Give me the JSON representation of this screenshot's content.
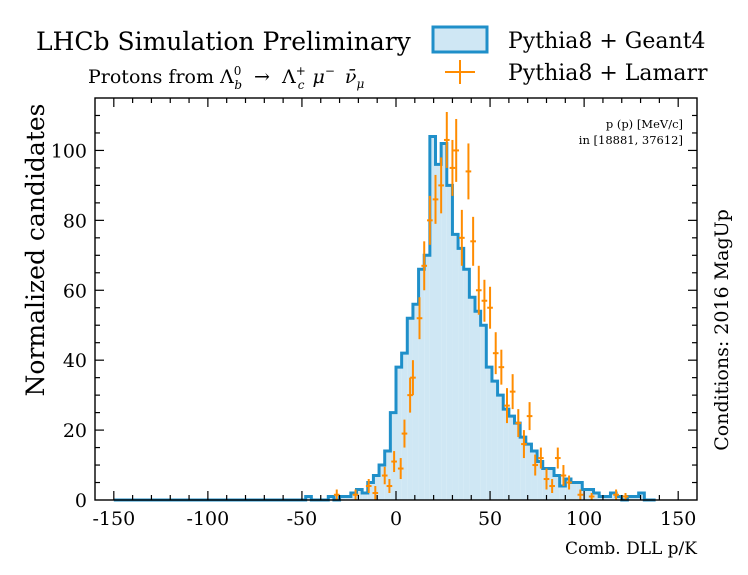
{
  "header": {
    "title": "LHCb Simulation Preliminary",
    "subtitle_prefix": "Protons from",
    "decay_parts": [
      "Λ",
      "0",
      "b",
      "→",
      "Λ",
      "+",
      "c",
      "μ",
      "−",
      "ν̄",
      "μ"
    ]
  },
  "conditions": "Conditions: 2016 MagUp",
  "bin_info": {
    "line1": "p (p) [MeV/c]",
    "line2": "in [18881, 37612]"
  },
  "colors": {
    "geant": "#1f8fc9",
    "geant_fill": "#cfe7f4",
    "lamarr": "#ff8c00"
  },
  "chart_data": {
    "type": "histogram",
    "xlabel": "Comb. DLL p/K",
    "ylabel": "Normalized candidates",
    "xlim": [
      -160,
      160
    ],
    "ylim": [
      0,
      115
    ],
    "xticks": [
      -150,
      -100,
      -50,
      0,
      50,
      100,
      150
    ],
    "yticks": [
      0,
      20,
      40,
      60,
      80,
      100
    ],
    "legend_position": "top-right",
    "bin_width": 3,
    "series": [
      {
        "name": "Pythia8 + Geant4",
        "style": "step-filled",
        "x": [
          -150,
          -147,
          -144,
          -141,
          -138,
          -135,
          -132,
          -129,
          -126,
          -123,
          -120,
          -117,
          -114,
          -111,
          -108,
          -105,
          -102,
          -99,
          -96,
          -93,
          -90,
          -87,
          -84,
          -81,
          -78,
          -75,
          -72,
          -69,
          -66,
          -63,
          -60,
          -57,
          -54,
          -51,
          -48,
          -45,
          -42,
          -39,
          -36,
          -33,
          -30,
          -27,
          -24,
          -21,
          -18,
          -15,
          -12,
          -9,
          -6,
          -3,
          0,
          3,
          6,
          9,
          12,
          15,
          18,
          21,
          24,
          27,
          30,
          33,
          36,
          39,
          42,
          45,
          48,
          51,
          54,
          57,
          60,
          63,
          66,
          69,
          72,
          75,
          78,
          81,
          84,
          87,
          90,
          93,
          96,
          99,
          102,
          105,
          108,
          111,
          114,
          117,
          120,
          123,
          126,
          129,
          132,
          135
        ],
        "y": [
          0,
          0,
          0,
          0,
          0,
          0,
          0,
          0,
          0,
          0,
          0,
          0,
          0,
          0,
          0,
          0,
          0,
          0,
          0,
          0,
          0,
          0,
          0,
          0,
          0,
          0,
          0,
          0,
          0,
          0,
          0,
          0,
          0,
          0,
          1,
          0,
          0,
          0,
          1,
          0,
          1,
          1,
          2,
          3,
          2,
          5,
          7,
          10,
          14,
          25,
          38,
          42,
          52,
          56,
          66,
          70,
          104,
          96,
          102,
          90,
          76,
          72,
          66,
          58,
          54,
          50,
          38,
          34,
          30,
          26,
          24,
          22,
          18,
          16,
          14,
          11,
          9,
          9,
          7,
          4,
          6,
          5,
          5,
          3,
          3,
          2,
          1,
          1,
          2,
          1,
          0,
          1,
          1,
          2,
          0,
          0
        ]
      },
      {
        "name": "Pythia8 + Lamarr",
        "style": "errorbar",
        "points": [
          {
            "x": -31.5,
            "y": 1.5,
            "err": 1.5
          },
          {
            "x": -21.5,
            "y": 1.5,
            "err": 1.5
          },
          {
            "x": -14.5,
            "y": 4,
            "err": 2
          },
          {
            "x": -11,
            "y": 2,
            "err": 2
          },
          {
            "x": -6,
            "y": 7,
            "err": 2.5
          },
          {
            "x": -3.5,
            "y": 4,
            "err": 2
          },
          {
            "x": -1,
            "y": 11,
            "err": 3
          },
          {
            "x": 2.5,
            "y": 9,
            "err": 3
          },
          {
            "x": 4.5,
            "y": 19,
            "err": 4
          },
          {
            "x": 7.5,
            "y": 30,
            "err": 5
          },
          {
            "x": 9,
            "y": 35,
            "err": 5
          },
          {
            "x": 12.5,
            "y": 52,
            "err": 6
          },
          {
            "x": 15,
            "y": 67,
            "err": 7
          },
          {
            "x": 18,
            "y": 80,
            "err": 7
          },
          {
            "x": 21,
            "y": 86,
            "err": 7
          },
          {
            "x": 24,
            "y": 90,
            "err": 8
          },
          {
            "x": 27,
            "y": 103,
            "err": 8
          },
          {
            "x": 30,
            "y": 95,
            "err": 8
          },
          {
            "x": 32,
            "y": 100,
            "err": 9
          },
          {
            "x": 35,
            "y": 75,
            "err": 8
          },
          {
            "x": 38.5,
            "y": 94,
            "err": 8
          },
          {
            "x": 41,
            "y": 74,
            "err": 7
          },
          {
            "x": 44,
            "y": 60,
            "err": 7
          },
          {
            "x": 47,
            "y": 57,
            "err": 6
          },
          {
            "x": 50,
            "y": 55,
            "err": 6
          },
          {
            "x": 53,
            "y": 42,
            "err": 6
          },
          {
            "x": 56,
            "y": 38,
            "err": 5
          },
          {
            "x": 59,
            "y": 27,
            "err": 5
          },
          {
            "x": 62,
            "y": 31,
            "err": 5
          },
          {
            "x": 65,
            "y": 22,
            "err": 4
          },
          {
            "x": 68,
            "y": 16,
            "err": 4
          },
          {
            "x": 71,
            "y": 24,
            "err": 4
          },
          {
            "x": 74,
            "y": 10,
            "err": 3
          },
          {
            "x": 77,
            "y": 12,
            "err": 3
          },
          {
            "x": 80,
            "y": 6,
            "err": 3
          },
          {
            "x": 83,
            "y": 4,
            "err": 2
          },
          {
            "x": 86,
            "y": 12,
            "err": 3
          },
          {
            "x": 89,
            "y": 7,
            "err": 3
          },
          {
            "x": 92,
            "y": 5,
            "err": 2
          },
          {
            "x": 98,
            "y": 1.5,
            "err": 1.5
          },
          {
            "x": 104,
            "y": 1,
            "err": 1
          },
          {
            "x": 117,
            "y": 1.5,
            "err": 1.5
          },
          {
            "x": 122,
            "y": 1,
            "err": 1
          }
        ]
      }
    ]
  }
}
